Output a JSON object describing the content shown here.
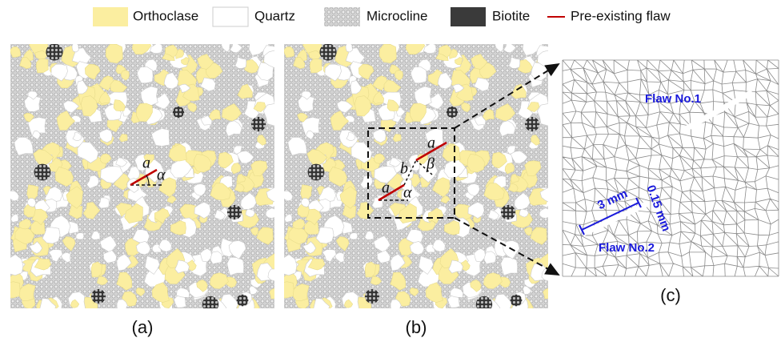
{
  "legend": [
    "Orthoclase",
    "Quartz",
    "Microcline",
    "Biotite",
    "Pre-existing flaw"
  ],
  "panel_a": {
    "caption": "(a)",
    "length_label": "a",
    "angle_label": "α"
  },
  "panel_b": {
    "caption": "(b)",
    "length_label_1": "a",
    "length_label_2": "a",
    "spacing_label": "b",
    "angle_label_1": "α",
    "angle_label_2": "β"
  },
  "panel_c": {
    "caption": "(c)",
    "flaw_1": "Flaw No.1",
    "flaw_2": "Flaw No.2",
    "length": "3 mm",
    "aperture": "0.15 mm"
  }
}
